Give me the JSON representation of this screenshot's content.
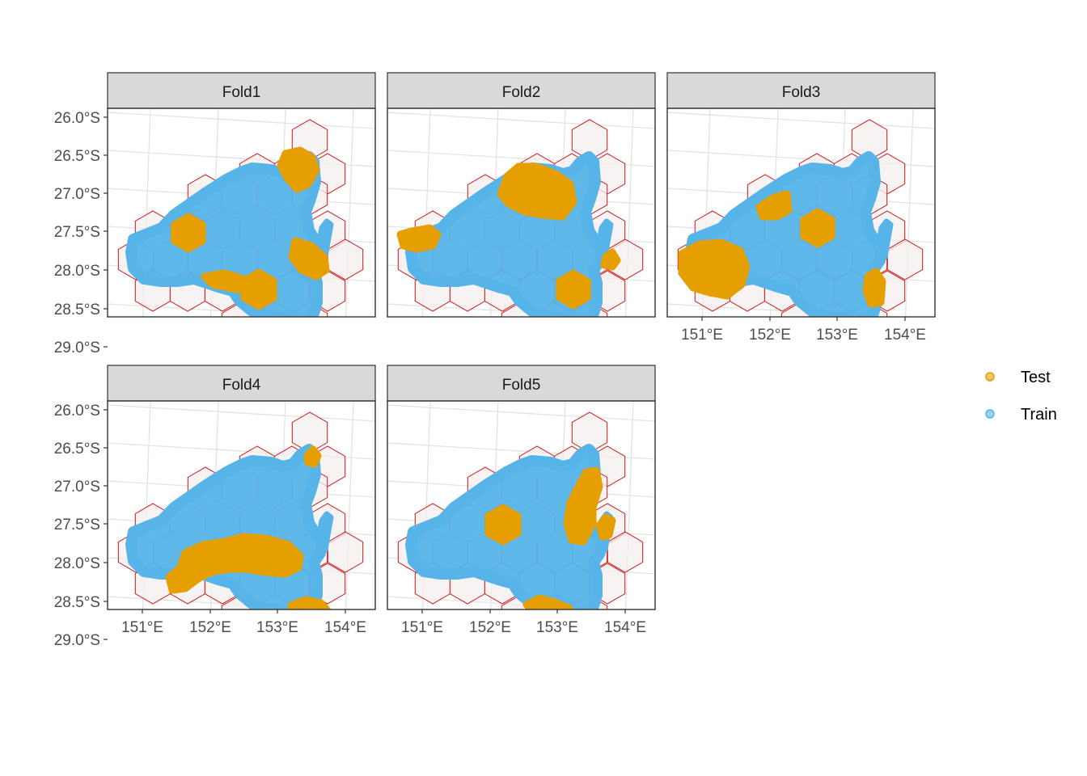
{
  "chart_data": {
    "type": "scatter",
    "subtype": "faceted spatial map (spatial block cross-validation folds)",
    "facets": [
      "Fold1",
      "Fold2",
      "Fold3",
      "Fold4",
      "Fold5"
    ],
    "layout": "3 columns x 2 rows; panel 6 empty",
    "x_ticks": [
      "151°E",
      "152°E",
      "153°E",
      "154°E"
    ],
    "y_ticks": [
      "26.0°S",
      "26.5°S",
      "27.0°S",
      "27.5°S",
      "28.0°S",
      "28.5°S",
      "29.0°S"
    ],
    "xlim": [
      150.5,
      154.5
    ],
    "ylim": [
      -29.05,
      -25.85
    ],
    "grid": true,
    "legend": {
      "position": "right",
      "entries": [
        {
          "name": "Test",
          "color": "#E69F00"
        },
        {
          "name": "Train",
          "color": "#56B4E9"
        }
      ]
    },
    "colors": {
      "test": "#E69F00",
      "train": "#56B4E9",
      "block_outline": "#CC1414"
    },
    "test_blocks_approx_centers": {
      "Fold1": [
        [
          153.45,
          -26.65
        ],
        [
          151.65,
          -27.5
        ],
        [
          153.45,
          -27.85
        ],
        [
          152.1,
          -28.15
        ],
        [
          152.7,
          -28.25
        ]
      ],
      "Fold2": [
        [
          151.3,
          -27.6
        ],
        [
          152.7,
          -27.0
        ],
        [
          153.2,
          -28.25
        ],
        [
          153.7,
          -27.85
        ]
      ],
      "Fold3": [
        [
          151.25,
          -27.95
        ],
        [
          151.95,
          -27.15
        ],
        [
          152.65,
          -27.5
        ],
        [
          153.5,
          -28.25
        ]
      ],
      "Fold4": [
        [
          152.25,
          -27.9
        ],
        [
          152.95,
          -27.85
        ],
        [
          153.45,
          -28.55
        ],
        [
          153.5,
          -26.6
        ],
        [
          151.5,
          -28.2
        ]
      ],
      "Fold5": [
        [
          152.2,
          -27.5
        ],
        [
          153.25,
          -27.5
        ],
        [
          153.35,
          -27.0
        ],
        [
          152.85,
          -28.6
        ],
        [
          153.7,
          -27.5
        ]
      ]
    }
  }
}
